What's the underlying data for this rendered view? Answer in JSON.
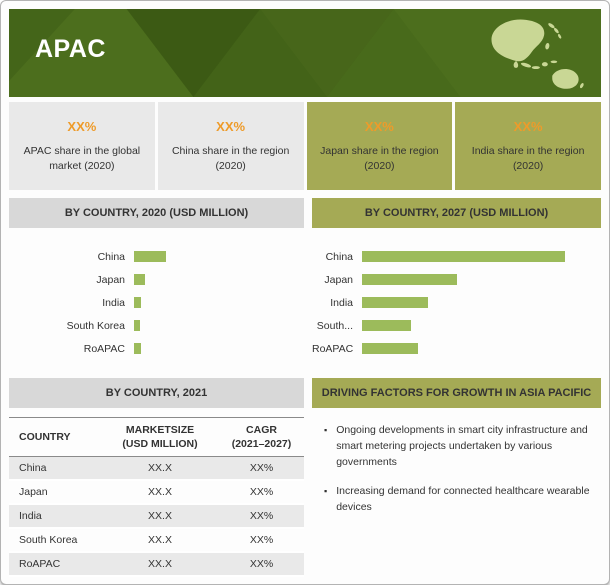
{
  "header": {
    "title": "APAC"
  },
  "stat_cards": [
    {
      "value": "XX",
      "suffix": "%",
      "label": "APAC share in the global market (2020)"
    },
    {
      "value": "XX",
      "suffix": "%",
      "label": "China share in the region (2020)"
    },
    {
      "value": "XX",
      "suffix": "%",
      "label": "Japan share in the region (2020)"
    },
    {
      "value": "XX",
      "suffix": "%",
      "label": "India share in the region (2020)"
    }
  ],
  "section_headers": {
    "by_country_2020": "BY COUNTRY, 2020 (USD MILLION)",
    "by_country_2027": "BY COUNTRY, 2027 (USD MILLION)",
    "by_country_2021": "BY COUNTRY, 2021",
    "driving_factors": "DRIVING FACTORS FOR GROWTH IN ASIA PACIFIC"
  },
  "chart_data": [
    {
      "type": "bar",
      "orientation": "horizontal",
      "title": "BY COUNTRY, 2020 (USD MILLION)",
      "categories": [
        "China",
        "Japan",
        "India",
        "South Korea",
        "RoAPAC"
      ],
      "values": [
        30,
        10,
        7,
        6,
        7
      ],
      "axis_max": 160,
      "value_labels": "none (figures masked as XX in source)",
      "bar_color": "#9cbb5b",
      "grid": false,
      "legend": "none"
    },
    {
      "type": "bar",
      "orientation": "horizontal",
      "title": "BY COUNTRY, 2027 (USD MILLION)",
      "categories": [
        "China",
        "Japan",
        "India",
        "South...",
        "RoAPAC"
      ],
      "values": [
        200,
        93,
        65,
        48,
        55
      ],
      "axis_max": 235,
      "value_labels": "none (figures masked as XX in source)",
      "bar_color": "#9cbb5b",
      "grid": false,
      "legend": "none"
    },
    {
      "type": "table",
      "title": "BY COUNTRY, 2021",
      "columns": [
        {
          "line1": "COUNTRY",
          "line2": ""
        },
        {
          "line1": "MARKETSIZE",
          "line2": "(USD MILLION)"
        },
        {
          "line1": "CAGR",
          "line2": "(2021–2027)"
        }
      ],
      "rows": [
        {
          "country": "China",
          "market_size": "XX.X",
          "cagr": "XX%"
        },
        {
          "country": "Japan",
          "market_size": "XX.X",
          "cagr": "XX%"
        },
        {
          "country": "India",
          "market_size": "XX.X",
          "cagr": "XX%"
        },
        {
          "country": "South Korea",
          "market_size": "XX.X",
          "cagr": "XX%"
        },
        {
          "country": "RoAPAC",
          "market_size": "XX.X",
          "cagr": "XX%"
        }
      ]
    }
  ],
  "driving_factors": {
    "bullet": "▪",
    "items": [
      "Ongoing developments in smart city infrastructure and smart metering projects undertaken by various governments",
      "Increasing demand for connected healthcare wearable devices"
    ]
  },
  "colors": {
    "banner-green": "#4c6e1d",
    "banner-dark": "#3a5713",
    "map-green": "#c9d795",
    "olive": "#a5aa55",
    "gray-header": "#d8d8d8",
    "card-gray": "#e9e9e9",
    "bar-green": "#9cbb5b",
    "accent-orange": "#ee9b2a",
    "row-alt": "#e9e9e9",
    "text-dark": "#333333"
  }
}
